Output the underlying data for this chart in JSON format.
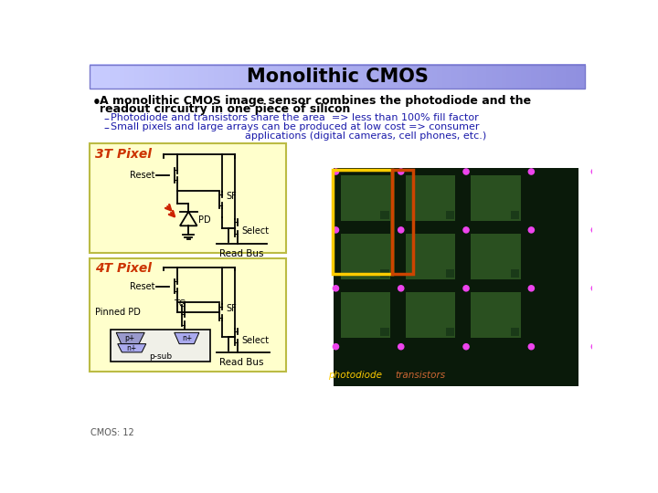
{
  "title": "Monolithic CMOS",
  "bg_color": "#ffffff",
  "title_bar_color": "#b0b8f8",
  "title_bar_color2": "#d8dcff",
  "bullet_color": "#000000",
  "sub_text_color": "#1a1aaa",
  "label_3t": "3T Pixel",
  "label_4t": "4T Pixel",
  "pixel_box_color": "#ffffcc",
  "pixel_box_edge": "#bbbb44",
  "label_color": "#cc3300",
  "footer": "CMOS: 12",
  "footer_color": "#555555",
  "chip_bg": "#0a1a0a",
  "chip_cell": "#2a5020",
  "chip_cell_border": "#050d05",
  "pink_dot": "#ee44ee",
  "yellow_rect": "#ffcc00",
  "orange_rect": "#cc4400"
}
